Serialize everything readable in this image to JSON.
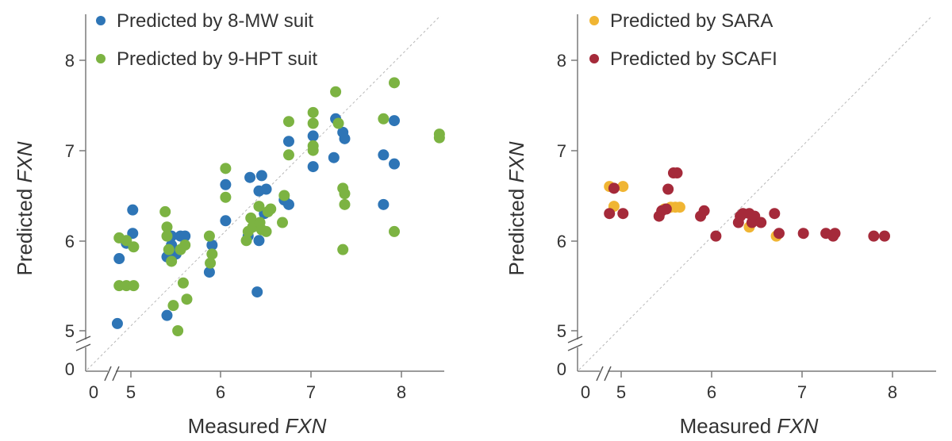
{
  "chart_data": [
    {
      "type": "scatter",
      "xlabel": {
        "prefix": "Measured ",
        "var": "FXN"
      },
      "ylabel": {
        "prefix": "Predicted ",
        "var": "FXN"
      },
      "x_ticks": [
        "0",
        "5",
        "6",
        "7",
        "8"
      ],
      "y_ticks": [
        "0",
        "5",
        "6",
        "7",
        "8"
      ],
      "xlim": [
        4.5,
        8.6
      ],
      "ylim": [
        4.55,
        8.55
      ],
      "identity_line": true,
      "axis_break": true,
      "legend_position": "top-left",
      "series": [
        {
          "name": "Predicted by 8-MW suit",
          "color": "#2e75b6",
          "points": [
            [
              4.85,
              5.08
            ],
            [
              4.87,
              5.8
            ],
            [
              4.95,
              5.97
            ],
            [
              5.02,
              6.08
            ],
            [
              5.02,
              6.34
            ],
            [
              5.4,
              5.17
            ],
            [
              5.4,
              5.82
            ],
            [
              5.45,
              5.95
            ],
            [
              5.45,
              6.05
            ],
            [
              5.5,
              5.85
            ],
            [
              5.55,
              6.05
            ],
            [
              5.6,
              6.05
            ],
            [
              5.87,
              5.65
            ],
            [
              5.9,
              5.95
            ],
            [
              6.05,
              6.22
            ],
            [
              6.05,
              6.62
            ],
            [
              6.3,
              6.05
            ],
            [
              6.32,
              6.7
            ],
            [
              6.4,
              5.43
            ],
            [
              6.42,
              6.0
            ],
            [
              6.42,
              6.55
            ],
            [
              6.45,
              6.72
            ],
            [
              6.48,
              6.3
            ],
            [
              6.5,
              6.57
            ],
            [
              6.7,
              6.45
            ],
            [
              6.75,
              6.4
            ],
            [
              6.75,
              7.1
            ],
            [
              7.02,
              6.82
            ],
            [
              7.02,
              7.16
            ],
            [
              7.25,
              6.92
            ],
            [
              7.27,
              7.35
            ],
            [
              7.35,
              7.2
            ],
            [
              7.37,
              7.13
            ],
            [
              7.8,
              6.95
            ],
            [
              7.8,
              6.4
            ],
            [
              7.92,
              7.33
            ],
            [
              7.92,
              6.85
            ]
          ]
        },
        {
          "name": "Predicted by 9-HPT suit",
          "color": "#7cb342",
          "points": [
            [
              4.87,
              6.03
            ],
            [
              4.87,
              5.5
            ],
            [
              4.95,
              5.5
            ],
            [
              4.95,
              6.0
            ],
            [
              5.03,
              5.5
            ],
            [
              5.03,
              5.93
            ],
            [
              5.38,
              6.32
            ],
            [
              5.4,
              6.15
            ],
            [
              5.4,
              6.05
            ],
            [
              5.42,
              5.9
            ],
            [
              5.45,
              5.77
            ],
            [
              5.47,
              5.28
            ],
            [
              5.52,
              5.0
            ],
            [
              5.55,
              5.9
            ],
            [
              5.58,
              5.53
            ],
            [
              5.62,
              5.35
            ],
            [
              5.6,
              5.95
            ],
            [
              5.87,
              6.05
            ],
            [
              5.88,
              5.75
            ],
            [
              5.9,
              5.85
            ],
            [
              6.05,
              6.8
            ],
            [
              6.05,
              6.48
            ],
            [
              6.28,
              6.0
            ],
            [
              6.3,
              6.1
            ],
            [
              6.33,
              6.25
            ],
            [
              6.35,
              6.15
            ],
            [
              6.42,
              6.38
            ],
            [
              6.43,
              6.2
            ],
            [
              6.45,
              6.12
            ],
            [
              6.5,
              6.1
            ],
            [
              6.52,
              6.32
            ],
            [
              6.55,
              6.35
            ],
            [
              6.68,
              6.2
            ],
            [
              6.7,
              6.5
            ],
            [
              6.75,
              6.95
            ],
            [
              6.75,
              7.32
            ],
            [
              7.02,
              7.05
            ],
            [
              7.02,
              7.0
            ],
            [
              7.02,
              7.3
            ],
            [
              7.02,
              7.42
            ],
            [
              7.27,
              7.65
            ],
            [
              7.3,
              7.3
            ],
            [
              7.35,
              6.58
            ],
            [
              7.37,
              6.52
            ],
            [
              7.37,
              6.4
            ],
            [
              7.35,
              5.9
            ],
            [
              7.8,
              7.35
            ],
            [
              7.92,
              7.75
            ],
            [
              7.92,
              6.1
            ],
            [
              8.42,
              7.18
            ],
            [
              8.42,
              7.14
            ]
          ]
        }
      ]
    },
    {
      "type": "scatter",
      "xlabel": {
        "prefix": "Measured ",
        "var": "FXN"
      },
      "ylabel": {
        "prefix": "Predicted ",
        "var": "FXN"
      },
      "x_ticks": [
        "0",
        "5",
        "6",
        "7",
        "8"
      ],
      "y_ticks": [
        "0",
        "5",
        "6",
        "7",
        "8"
      ],
      "xlim": [
        4.5,
        8.6
      ],
      "ylim": [
        4.55,
        8.55
      ],
      "identity_line": true,
      "axis_break": true,
      "legend_position": "top-left",
      "series": [
        {
          "name": "Predicted by SARA",
          "color": "#f0b533",
          "points": [
            [
              4.87,
              6.6
            ],
            [
              4.92,
              6.38
            ],
            [
              5.02,
              6.6
            ],
            [
              5.48,
              6.35
            ],
            [
              5.55,
              6.37
            ],
            [
              5.6,
              6.37
            ],
            [
              5.65,
              6.37
            ],
            [
              6.42,
              6.15
            ],
            [
              6.72,
              6.05
            ]
          ]
        },
        {
          "name": "Predicted by SCAFI",
          "color": "#a52a3a",
          "points": [
            [
              4.87,
              6.3
            ],
            [
              4.92,
              6.58
            ],
            [
              5.02,
              6.3
            ],
            [
              5.42,
              6.27
            ],
            [
              5.45,
              6.33
            ],
            [
              5.5,
              6.35
            ],
            [
              5.52,
              6.57
            ],
            [
              5.58,
              6.75
            ],
            [
              5.62,
              6.75
            ],
            [
              5.88,
              6.27
            ],
            [
              5.92,
              6.33
            ],
            [
              6.05,
              6.05
            ],
            [
              6.3,
              6.2
            ],
            [
              6.32,
              6.27
            ],
            [
              6.35,
              6.3
            ],
            [
              6.42,
              6.3
            ],
            [
              6.45,
              6.2
            ],
            [
              6.48,
              6.27
            ],
            [
              6.55,
              6.2
            ],
            [
              6.7,
              6.3
            ],
            [
              6.75,
              6.08
            ],
            [
              7.02,
              6.08
            ],
            [
              7.27,
              6.08
            ],
            [
              7.35,
              6.05
            ],
            [
              7.37,
              6.08
            ],
            [
              7.8,
              6.05
            ],
            [
              7.92,
              6.05
            ]
          ]
        }
      ]
    }
  ]
}
